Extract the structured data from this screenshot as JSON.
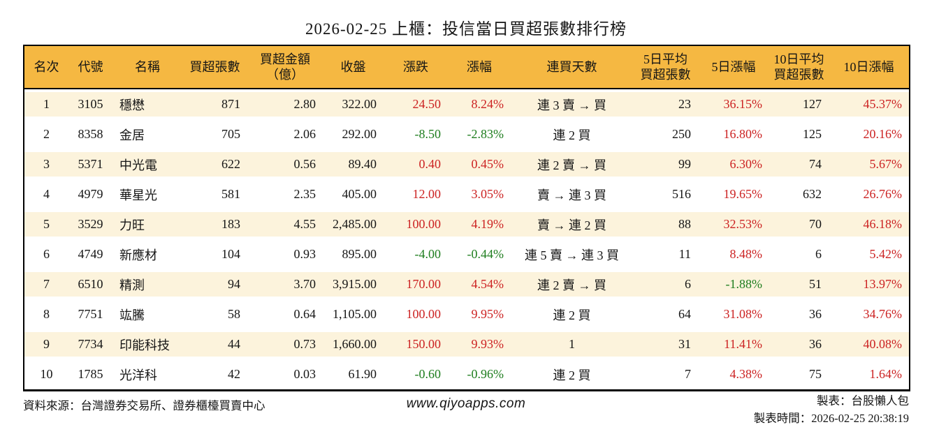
{
  "colors": {
    "up_red": "#cc2222",
    "down_green": "#1e7d1e",
    "header_bg": "#f5b842",
    "stripe_bg": "#fcf3dc",
    "border": "#000000"
  },
  "chart_data": {
    "type": "table",
    "title": "2026-02-25 上櫃：投信當日買超張數排行榜",
    "columns": [
      "名次",
      "代號",
      "名稱",
      "買超張數",
      "買超金額（億）",
      "收盤",
      "漲跌",
      "漲幅",
      "連買天數",
      "5日平均買超張數",
      "5日漲幅",
      "10日平均買超張數",
      "10日漲幅"
    ],
    "column_lines": [
      [
        "名次"
      ],
      [
        "代號"
      ],
      [
        "名稱"
      ],
      [
        "買超張數"
      ],
      [
        "買超金額",
        "（億）"
      ],
      [
        "收盤"
      ],
      [
        "漲跌"
      ],
      [
        "漲幅"
      ],
      [
        "連買天數"
      ],
      [
        "5日平均",
        "買超張數"
      ],
      [
        "5日漲幅"
      ],
      [
        "10日平均",
        "買超張數"
      ],
      [
        "10日漲幅"
      ]
    ],
    "rows": [
      [
        "1",
        "3105",
        "穩懋",
        "871",
        "2.80",
        "322.00",
        "24.50",
        "8.24%",
        "連 3 賣 → 買",
        "23",
        "36.15%",
        "127",
        "45.37%"
      ],
      [
        "2",
        "8358",
        "金居",
        "705",
        "2.06",
        "292.00",
        "-8.50",
        "-2.83%",
        "連 2 買",
        "250",
        "16.80%",
        "125",
        "20.16%"
      ],
      [
        "3",
        "5371",
        "中光電",
        "622",
        "0.56",
        "89.40",
        "0.40",
        "0.45%",
        "連 2 賣 → 買",
        "99",
        "6.30%",
        "74",
        "5.67%"
      ],
      [
        "4",
        "4979",
        "華星光",
        "581",
        "2.35",
        "405.00",
        "12.00",
        "3.05%",
        "賣 → 連 3 買",
        "516",
        "19.65%",
        "632",
        "26.76%"
      ],
      [
        "5",
        "3529",
        "力旺",
        "183",
        "4.55",
        "2,485.00",
        "100.00",
        "4.19%",
        "賣 → 連 2 買",
        "88",
        "32.53%",
        "70",
        "46.18%"
      ],
      [
        "6",
        "4749",
        "新應材",
        "104",
        "0.93",
        "895.00",
        "-4.00",
        "-0.44%",
        "連 5 賣 → 連 3 買",
        "11",
        "8.48%",
        "6",
        "5.42%"
      ],
      [
        "7",
        "6510",
        "精測",
        "94",
        "3.70",
        "3,915.00",
        "170.00",
        "4.54%",
        "連 2 賣 → 買",
        "6",
        "-1.88%",
        "51",
        "13.97%"
      ],
      [
        "8",
        "7751",
        "竑騰",
        "58",
        "0.64",
        "1,105.00",
        "100.00",
        "9.95%",
        "連 2 買",
        "64",
        "31.08%",
        "36",
        "34.76%"
      ],
      [
        "9",
        "7734",
        "印能科技",
        "44",
        "0.73",
        "1,660.00",
        "150.00",
        "9.93%",
        "1",
        "31",
        "11.41%",
        "36",
        "40.08%"
      ],
      [
        "10",
        "1785",
        "光洋科",
        "42",
        "0.03",
        "61.90",
        "-0.60",
        "-0.96%",
        "連 2 買",
        "7",
        "4.38%",
        "75",
        "1.64%"
      ]
    ]
  },
  "footer": {
    "source": "資料來源：台灣證券交易所、證券櫃檯買賣中心",
    "website": "www.qiyoapps.com",
    "creator": "製表：台股懶人包",
    "created_at": "製表時間：2026-02-25 20:38:19"
  }
}
